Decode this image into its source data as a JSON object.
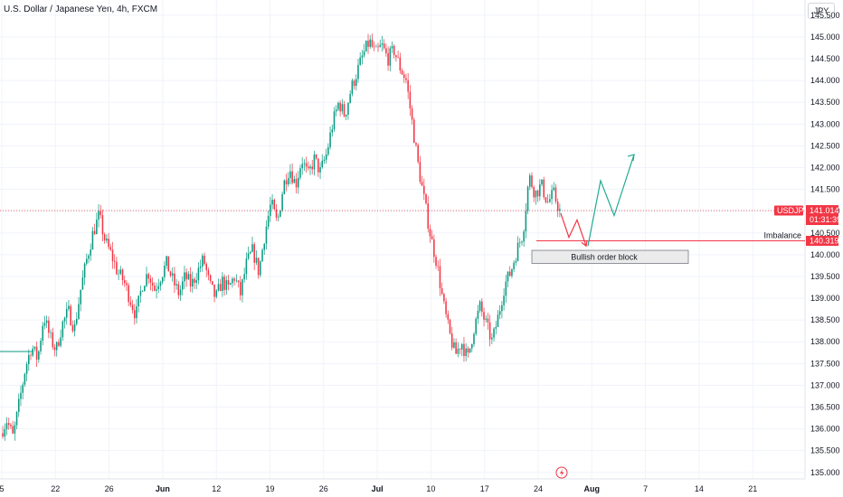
{
  "header": {
    "title": "U.S. Dollar / Japanese Yen, 4h, FXCM",
    "currency_button": "JPY"
  },
  "colors": {
    "up": "#089981",
    "down": "#f23645",
    "accent": "#f23645",
    "axis_text": "#131722",
    "grid": "#f0f3fa"
  },
  "price_label": {
    "symbol": "USDJPY",
    "price": "141.014",
    "countdown": "01:31:39"
  },
  "annotations": {
    "imbalance_text": "Imbalance",
    "imbalance_price": "140.319",
    "order_block_text": "Bullish order block"
  },
  "chart_data": {
    "type": "candlestick",
    "title": "U.S. Dollar / Japanese Yen, 4h, FXCM",
    "ylim": [
      134.85,
      145.85
    ],
    "y_ticks": [
      "145.500",
      "145.000",
      "144.500",
      "144.000",
      "143.500",
      "143.000",
      "142.500",
      "142.000",
      "141.500",
      "141.000",
      "140.500",
      "140.000",
      "139.500",
      "139.000",
      "138.500",
      "138.000",
      "137.500",
      "137.000",
      "136.500",
      "136.000",
      "135.500",
      "135.000"
    ],
    "x_ticks": [
      {
        "label": "5",
        "bold": false
      },
      {
        "label": "22",
        "bold": false
      },
      {
        "label": "26",
        "bold": false
      },
      {
        "label": "Jun",
        "bold": true
      },
      {
        "label": "12",
        "bold": false
      },
      {
        "label": "19",
        "bold": false
      },
      {
        "label": "26",
        "bold": false
      },
      {
        "label": "Jul",
        "bold": true
      },
      {
        "label": "10",
        "bold": false
      },
      {
        "label": "17",
        "bold": false
      },
      {
        "label": "24",
        "bold": false
      },
      {
        "label": "Aug",
        "bold": true
      },
      {
        "label": "7",
        "bold": false
      },
      {
        "label": "14",
        "bold": false
      },
      {
        "label": "21",
        "bold": false
      }
    ],
    "current_price": 141.014,
    "imbalance_level": 140.319,
    "order_block": {
      "top": 140.1,
      "bottom": 139.8
    },
    "projection_red": [
      140.95,
      140.4,
      140.8,
      140.2
    ],
    "projection_green": [
      140.2,
      141.7,
      140.9,
      142.3
    ],
    "price_path": [
      135.9,
      136.2,
      135.8,
      136.6,
      137.4,
      137.9,
      137.6,
      138.6,
      138.1,
      137.8,
      138.4,
      138.7,
      138.3,
      139.2,
      139.9,
      140.5,
      140.9,
      140.3,
      140.0,
      139.6,
      139.4,
      139.0,
      138.6,
      139.3,
      139.6,
      139.2,
      139.5,
      139.8,
      139.4,
      139.1,
      139.5,
      139.3,
      139.6,
      139.9,
      139.3,
      139.0,
      139.4,
      139.2,
      139.5,
      139.1,
      139.8,
      140.1,
      139.6,
      140.5,
      141.2,
      140.7,
      141.6,
      142.0,
      141.6,
      142.2,
      141.8,
      142.2,
      141.9,
      142.3,
      143.0,
      143.5,
      143.2,
      143.8,
      144.2,
      144.6,
      144.9,
      144.6,
      144.8,
      144.5,
      144.7,
      144.3,
      144.0,
      143.0,
      142.0,
      141.2,
      140.4,
      139.8,
      138.9,
      138.2,
      137.7,
      138.0,
      137.6,
      138.3,
      138.8,
      138.4,
      138.0,
      138.6,
      139.3,
      139.6,
      140.1,
      140.5,
      141.8,
      141.4,
      141.6,
      141.2,
      141.4,
      141.0
    ]
  }
}
